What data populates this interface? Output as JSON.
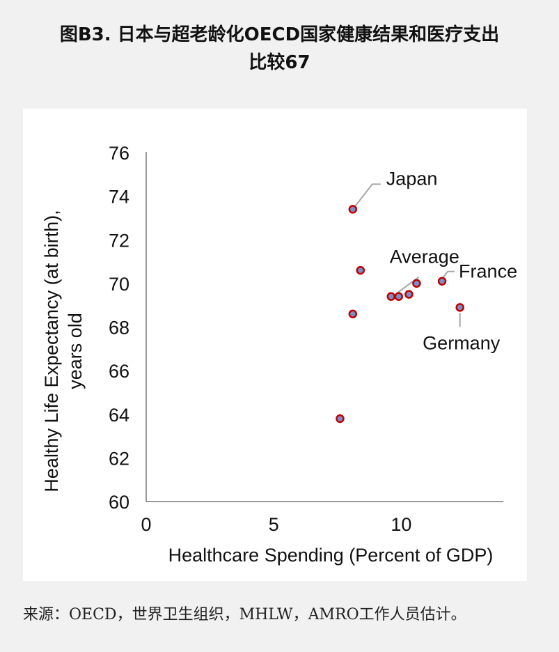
{
  "title": {
    "line1": "图B3. 日本与超老龄化OECD国家健康结果和医疗支出",
    "line2": "比较67"
  },
  "chart_data": {
    "type": "scatter",
    "xlabel": "Healthcare Spending (Percent of GDP)",
    "ylabel": "Healthy Life Expectancy (at birth), years old",
    "ylabel_lines": [
      "Healthy Life Expectancy (at birth),",
      "years old"
    ],
    "xlim": [
      0,
      14
    ],
    "ylim": [
      60,
      76
    ],
    "xticks": [
      0,
      5,
      10
    ],
    "yticks": [
      60,
      62,
      64,
      66,
      68,
      70,
      72,
      74,
      76
    ],
    "grid": false,
    "legend": "none",
    "marker_fill": "#7b8fc7",
    "marker_edge": "#c00000",
    "points": [
      {
        "x": 8.1,
        "y": 73.4,
        "label": "Japan"
      },
      {
        "x": 8.4,
        "y": 70.6,
        "label": ""
      },
      {
        "x": 8.1,
        "y": 68.6,
        "label": ""
      },
      {
        "x": 7.6,
        "y": 63.8,
        "label": ""
      },
      {
        "x": 9.6,
        "y": 69.4,
        "label": "Average"
      },
      {
        "x": 9.9,
        "y": 69.4,
        "label": ""
      },
      {
        "x": 10.3,
        "y": 69.5,
        "label": ""
      },
      {
        "x": 10.6,
        "y": 70.0,
        "label": ""
      },
      {
        "x": 11.6,
        "y": 70.1,
        "label": "France"
      },
      {
        "x": 12.3,
        "y": 68.9,
        "label": "Germany"
      }
    ]
  },
  "source": "来源：OECD，世界卫生组织，MHLW，AMRO工作人员估计。"
}
